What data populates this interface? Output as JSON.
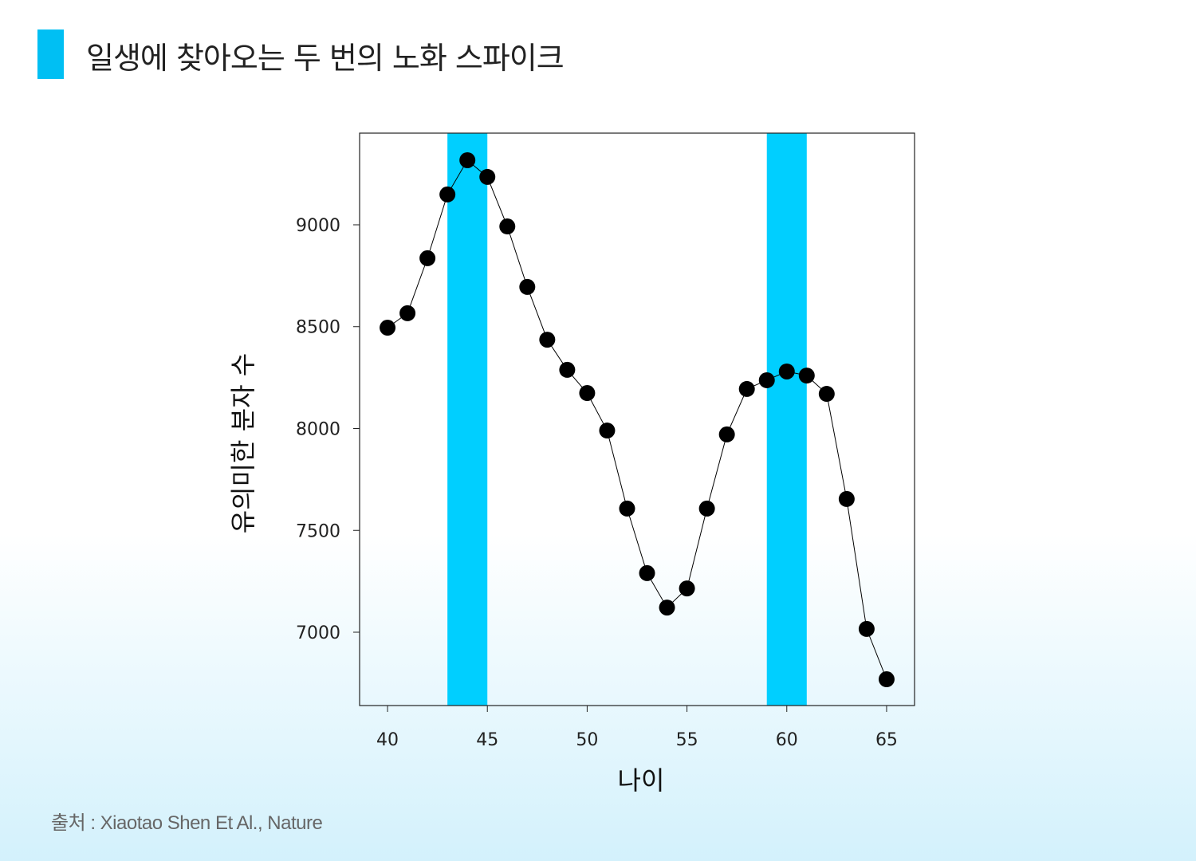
{
  "title": "일생에 찾아오는 두 번의 노화 스파이크",
  "source": "출처 : Xiaotao Shen Et Al., Nature",
  "colors": {
    "accent": "#00cfff",
    "title_mark": "#00bff3",
    "line": "#000000",
    "marker": "#000000"
  },
  "chart_data": {
    "type": "line",
    "xlabel": "나이",
    "ylabel": "유의미한 분자 수",
    "xlim": [
      38.6,
      66.4
    ],
    "ylim": [
      6640,
      9450
    ],
    "xticks": [
      40,
      45,
      50,
      55,
      60,
      65
    ],
    "yticks": [
      7000,
      7500,
      8000,
      8500,
      9000
    ],
    "grid": false,
    "highlight_bands": [
      [
        43,
        45
      ],
      [
        59,
        61
      ]
    ],
    "x": [
      40,
      41,
      42,
      43,
      44,
      45,
      46,
      47,
      48,
      49,
      50,
      51,
      52,
      53,
      54,
      55,
      56,
      57,
      58,
      59,
      60,
      61,
      62,
      63,
      64,
      65
    ],
    "y": [
      8495,
      8566,
      8836,
      9149,
      9317,
      9235,
      8992,
      8695,
      8436,
      8288,
      8174,
      7990,
      7607,
      7290,
      7121,
      7215,
      7607,
      7971,
      8194,
      8237,
      8280,
      8260,
      8170,
      7654,
      7016,
      6769
    ]
  }
}
